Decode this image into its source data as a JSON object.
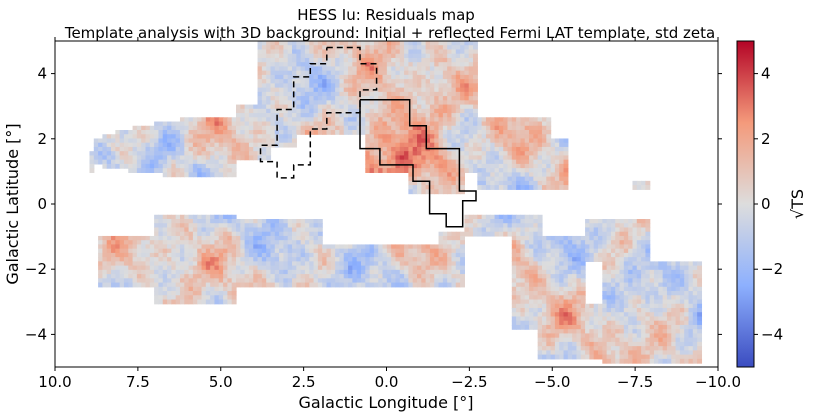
{
  "chart_data": {
    "type": "heatmap",
    "title": "HESS Iu: Residuals map",
    "subtitle": "Template analysis with 3D background: Initial + reflected Fermi LAT template, std zeta",
    "xlabel": "Galactic Longitude [°]",
    "ylabel": "Galactic Latitude [°]",
    "colorbar_label": "√TS",
    "xlim": [
      10,
      -10
    ],
    "ylim": [
      -5,
      5
    ],
    "clim": [
      -5,
      5
    ],
    "colormap": "coolwarm",
    "colormap_stops": [
      "#3b4cc0",
      "#8db0fe",
      "#dddddd",
      "#f49a7b",
      "#b40426"
    ],
    "x_ticks": [
      10,
      7.5,
      5,
      2.5,
      0,
      -2.5,
      -5,
      -7.5,
      -10
    ],
    "x_tick_labels": [
      "10.0",
      "7.5",
      "5.0",
      "2.5",
      "0.0",
      "−2.5",
      "−5.0",
      "−7.5",
      "−10.0"
    ],
    "y_ticks": [
      4,
      2,
      0,
      -2,
      -4
    ],
    "y_tick_labels": [
      "4",
      "2",
      "0",
      "−2",
      "−4"
    ],
    "colorbar_ticks": [
      4,
      2,
      0,
      -2,
      -4
    ],
    "colorbar_tick_labels": [
      "4",
      "2",
      "0",
      "−2",
      "−4"
    ],
    "residual_hotspot": {
      "l": 0.0,
      "b": 1.7,
      "peak_sqrt_ts": 4.0
    },
    "on_region_solid": [
      [
        0.8,
        3.2
      ],
      [
        -0.7,
        3.2
      ],
      [
        -0.7,
        2.4
      ],
      [
        -1.2,
        2.4
      ],
      [
        -1.2,
        1.7
      ],
      [
        -2.2,
        1.7
      ],
      [
        -2.2,
        0.4
      ],
      [
        -2.7,
        0.4
      ],
      [
        -2.7,
        0.1
      ],
      [
        -2.3,
        0.1
      ],
      [
        -2.3,
        -0.7
      ],
      [
        -1.8,
        -0.7
      ],
      [
        -1.8,
        -0.3
      ],
      [
        -1.3,
        -0.3
      ],
      [
        -1.3,
        0.7
      ],
      [
        -0.8,
        0.7
      ],
      [
        -0.8,
        1.2
      ],
      [
        0.2,
        1.2
      ],
      [
        0.2,
        1.7
      ],
      [
        0.8,
        1.7
      ],
      [
        0.8,
        3.2
      ]
    ],
    "reflected_region_dashed": [
      [
        1.8,
        4.8
      ],
      [
        0.8,
        4.8
      ],
      [
        0.8,
        4.3
      ],
      [
        0.3,
        4.3
      ],
      [
        0.3,
        3.5
      ],
      [
        0.8,
        3.5
      ],
      [
        0.8,
        2.8
      ],
      [
        1.8,
        2.8
      ],
      [
        1.8,
        2.3
      ],
      [
        2.3,
        2.3
      ],
      [
        2.3,
        1.2
      ],
      [
        2.8,
        1.2
      ],
      [
        2.8,
        0.8
      ],
      [
        3.3,
        0.8
      ],
      [
        3.3,
        1.3
      ],
      [
        3.8,
        1.3
      ],
      [
        3.8,
        1.8
      ],
      [
        3.3,
        1.8
      ],
      [
        3.3,
        2.9
      ],
      [
        2.8,
        2.9
      ],
      [
        2.8,
        3.9
      ],
      [
        2.3,
        3.9
      ],
      [
        2.3,
        4.3
      ],
      [
        1.8,
        4.3
      ],
      [
        1.8,
        4.8
      ]
    ]
  }
}
